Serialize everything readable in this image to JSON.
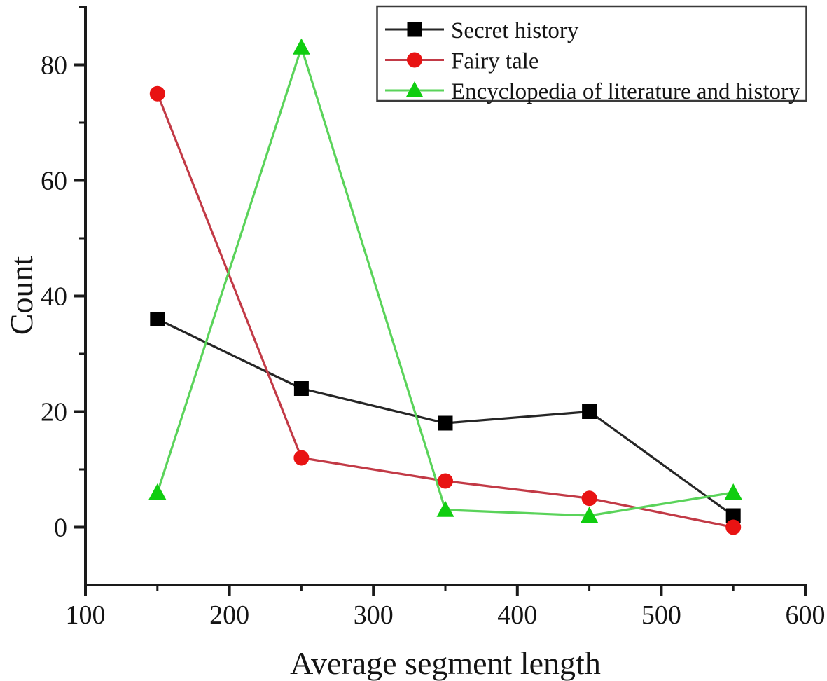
{
  "chart_data": {
    "type": "line",
    "title": "",
    "xlabel": "Average segment length",
    "ylabel": "Count",
    "x": [
      150,
      250,
      350,
      450,
      550
    ],
    "series": [
      {
        "name": "Secret history",
        "marker": "square",
        "line_color": "#262626",
        "marker_color": "#000000",
        "values": [
          36,
          24,
          18,
          20,
          2
        ]
      },
      {
        "name": "Fairy tale",
        "marker": "circle",
        "line_color": "#c23a46",
        "marker_color": "#e81313",
        "values": [
          75,
          12,
          8,
          5,
          0
        ]
      },
      {
        "name": "Encyclopedia of literature and history",
        "marker": "triangle",
        "line_color": "#5ad35a",
        "marker_color": "#10cd10",
        "values": [
          6,
          83,
          3,
          2,
          6
        ]
      }
    ],
    "xlim": [
      100,
      600
    ],
    "ylim": [
      -10,
      90
    ],
    "x_major_ticks": [
      100,
      200,
      300,
      400,
      500,
      600
    ],
    "x_minor_ticks": [
      150,
      250,
      350,
      450,
      550
    ],
    "y_major_ticks": [
      0,
      20,
      40,
      60,
      80
    ],
    "y_minor_ticks": [
      10,
      30,
      50,
      70,
      90
    ],
    "grid": false,
    "legend_position": "top-right",
    "axis_color": "#1a1a1a",
    "legend_border_color": "#3a3a3a",
    "background": "#ffffff"
  }
}
